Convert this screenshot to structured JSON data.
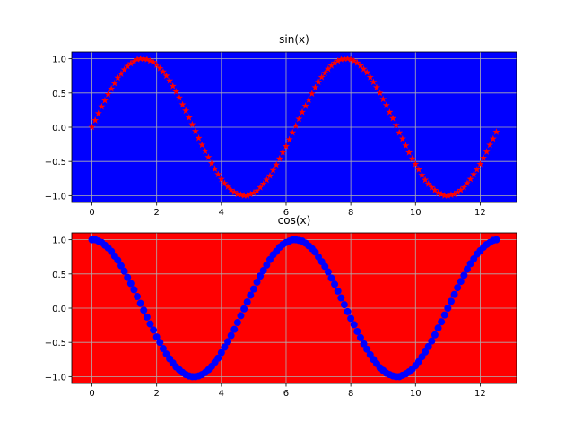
{
  "chart_data": [
    {
      "type": "scatter",
      "title": "sin(x)",
      "color": "#ff0000",
      "marker": "star",
      "facecolor": "#0000ff",
      "grid": true,
      "x": [
        0.0,
        0.1,
        0.2,
        0.3,
        0.4,
        0.5,
        0.6,
        0.7,
        0.8,
        0.9,
        1.0,
        1.1,
        1.2,
        1.3,
        1.4,
        1.5,
        1.6,
        1.7,
        1.8,
        1.9,
        2.0,
        2.1,
        2.2,
        2.3,
        2.4,
        2.5,
        2.6,
        2.7,
        2.8,
        2.9,
        3.0,
        3.1,
        3.2,
        3.3,
        3.4,
        3.5,
        3.6,
        3.7,
        3.8,
        3.9,
        4.0,
        4.1,
        4.2,
        4.3,
        4.4,
        4.5,
        4.6,
        4.7,
        4.8,
        4.9,
        5.0,
        5.1,
        5.2,
        5.3,
        5.4,
        5.5,
        5.6,
        5.7,
        5.8,
        5.9,
        6.0,
        6.1,
        6.2,
        6.3,
        6.4,
        6.5,
        6.6,
        6.7,
        6.8,
        6.9,
        7.0,
        7.1,
        7.2,
        7.3,
        7.4,
        7.5,
        7.6,
        7.7,
        7.8,
        7.9,
        8.0,
        8.1,
        8.2,
        8.3,
        8.4,
        8.5,
        8.6,
        8.7,
        8.8,
        8.9,
        9.0,
        9.1,
        9.2,
        9.3,
        9.4,
        9.5,
        9.6,
        9.7,
        9.8,
        9.9,
        10.0,
        10.1,
        10.2,
        10.3,
        10.4,
        10.5,
        10.6,
        10.7,
        10.8,
        10.9,
        11.0,
        11.1,
        11.2,
        11.3,
        11.4,
        11.5,
        11.6,
        11.7,
        11.8,
        11.9,
        12.0,
        12.1,
        12.2,
        12.3,
        12.4,
        12.5
      ],
      "values": [
        0.0,
        0.1,
        0.2,
        0.3,
        0.39,
        0.48,
        0.56,
        0.64,
        0.72,
        0.78,
        0.84,
        0.89,
        0.93,
        0.96,
        0.99,
        1.0,
        1.0,
        0.99,
        0.97,
        0.95,
        0.91,
        0.86,
        0.81,
        0.75,
        0.68,
        0.6,
        0.52,
        0.43,
        0.33,
        0.24,
        0.14,
        0.04,
        -0.06,
        -0.16,
        -0.26,
        -0.35,
        -0.44,
        -0.53,
        -0.61,
        -0.69,
        -0.76,
        -0.82,
        -0.87,
        -0.92,
        -0.95,
        -0.98,
        -0.99,
        -1.0,
        -1.0,
        -0.98,
        -0.96,
        -0.93,
        -0.88,
        -0.83,
        -0.77,
        -0.71,
        -0.63,
        -0.55,
        -0.46,
        -0.37,
        -0.28,
        -0.18,
        -0.08,
        0.02,
        0.12,
        0.22,
        0.31,
        0.4,
        0.49,
        0.58,
        0.66,
        0.73,
        0.79,
        0.85,
        0.9,
        0.94,
        0.97,
        0.99,
        1.0,
        1.0,
        0.99,
        0.97,
        0.94,
        0.9,
        0.85,
        0.8,
        0.73,
        0.66,
        0.58,
        0.5,
        0.41,
        0.32,
        0.22,
        0.13,
        0.03,
        -0.08,
        -0.17,
        -0.27,
        -0.37,
        -0.46,
        -0.54,
        -0.62,
        -0.7,
        -0.77,
        -0.83,
        -0.88,
        -0.92,
        -0.96,
        -0.98,
        -1.0,
        -1.0,
        -0.99,
        -0.98,
        -0.95,
        -0.92,
        -0.88,
        -0.82,
        -0.76,
        -0.69,
        -0.62,
        -0.54,
        -0.45,
        -0.36,
        -0.26,
        -0.17,
        -0.07
      ],
      "xlim": [
        -0.625,
        13.125
      ],
      "ylim": [
        -1.1,
        1.1
      ],
      "xticks": [
        0,
        2,
        4,
        6,
        8,
        10,
        12
      ],
      "yticks": [
        {
          "value": -1,
          "label": "−1.0"
        },
        {
          "value": -0.5,
          "label": "−0.5"
        },
        {
          "value": 0,
          "label": "0.0"
        },
        {
          "value": 0.5,
          "label": "0.5"
        },
        {
          "value": 1,
          "label": "1.0"
        }
      ]
    },
    {
      "type": "scatter",
      "title": "cos(x)",
      "color": "#0000ff",
      "marker": "circle",
      "facecolor": "#ff0000",
      "grid": true,
      "x": [
        0.0,
        0.1,
        0.2,
        0.3,
        0.4,
        0.5,
        0.6,
        0.7,
        0.8,
        0.9,
        1.0,
        1.1,
        1.2,
        1.3,
        1.4,
        1.5,
        1.6,
        1.7,
        1.8,
        1.9,
        2.0,
        2.1,
        2.2,
        2.3,
        2.4,
        2.5,
        2.6,
        2.7,
        2.8,
        2.9,
        3.0,
        3.1,
        3.2,
        3.3,
        3.4,
        3.5,
        3.6,
        3.7,
        3.8,
        3.9,
        4.0,
        4.1,
        4.2,
        4.3,
        4.4,
        4.5,
        4.6,
        4.7,
        4.8,
        4.9,
        5.0,
        5.1,
        5.2,
        5.3,
        5.4,
        5.5,
        5.6,
        5.7,
        5.8,
        5.9,
        6.0,
        6.1,
        6.2,
        6.3,
        6.4,
        6.5,
        6.6,
        6.7,
        6.8,
        6.9,
        7.0,
        7.1,
        7.2,
        7.3,
        7.4,
        7.5,
        7.6,
        7.7,
        7.8,
        7.9,
        8.0,
        8.1,
        8.2,
        8.3,
        8.4,
        8.5,
        8.6,
        8.7,
        8.8,
        8.9,
        9.0,
        9.1,
        9.2,
        9.3,
        9.4,
        9.5,
        9.6,
        9.7,
        9.8,
        9.9,
        10.0,
        10.1,
        10.2,
        10.3,
        10.4,
        10.5,
        10.6,
        10.7,
        10.8,
        10.9,
        11.0,
        11.1,
        11.2,
        11.3,
        11.4,
        11.5,
        11.6,
        11.7,
        11.8,
        11.9,
        12.0,
        12.1,
        12.2,
        12.3,
        12.4,
        12.5
      ],
      "values": [
        1.0,
        1.0,
        0.98,
        0.96,
        0.92,
        0.88,
        0.83,
        0.76,
        0.7,
        0.62,
        0.54,
        0.45,
        0.36,
        0.27,
        0.17,
        0.07,
        -0.03,
        -0.13,
        -0.23,
        -0.32,
        -0.42,
        -0.5,
        -0.59,
        -0.67,
        -0.74,
        -0.8,
        -0.86,
        -0.9,
        -0.94,
        -0.97,
        -0.99,
        -1.0,
        -1.0,
        -0.99,
        -0.97,
        -0.94,
        -0.9,
        -0.85,
        -0.79,
        -0.73,
        -0.65,
        -0.57,
        -0.49,
        -0.4,
        -0.31,
        -0.21,
        -0.11,
        -0.01,
        0.09,
        0.19,
        0.28,
        0.38,
        0.47,
        0.55,
        0.63,
        0.71,
        0.78,
        0.83,
        0.89,
        0.93,
        0.96,
        0.98,
        1.0,
        1.0,
        0.99,
        0.98,
        0.95,
        0.91,
        0.87,
        0.82,
        0.75,
        0.68,
        0.61,
        0.53,
        0.44,
        0.35,
        0.25,
        0.15,
        0.05,
        -0.05,
        -0.15,
        -0.24,
        -0.34,
        -0.43,
        -0.52,
        -0.6,
        -0.68,
        -0.75,
        -0.81,
        -0.87,
        -0.91,
        -0.95,
        -0.97,
        -0.99,
        -1.0,
        -1.0,
        -0.98,
        -0.96,
        -0.93,
        -0.89,
        -0.84,
        -0.78,
        -0.71,
        -0.64,
        -0.56,
        -0.48,
        -0.39,
        -0.29,
        -0.2,
        -0.1,
        0.0,
        0.1,
        0.2,
        0.3,
        0.39,
        0.48,
        0.57,
        0.65,
        0.72,
        0.79,
        0.84,
        0.89,
        0.93,
        0.96,
        0.99,
        1.0
      ],
      "xlim": [
        -0.625,
        13.125
      ],
      "ylim": [
        -1.1,
        1.1
      ],
      "xticks": [
        0,
        2,
        4,
        6,
        8,
        10,
        12
      ],
      "yticks": [
        {
          "value": -1,
          "label": "−1.0"
        },
        {
          "value": -0.5,
          "label": "−0.5"
        },
        {
          "value": 0,
          "label": "0.0"
        },
        {
          "value": 0.5,
          "label": "0.5"
        },
        {
          "value": 1,
          "label": "1.0"
        }
      ]
    }
  ]
}
